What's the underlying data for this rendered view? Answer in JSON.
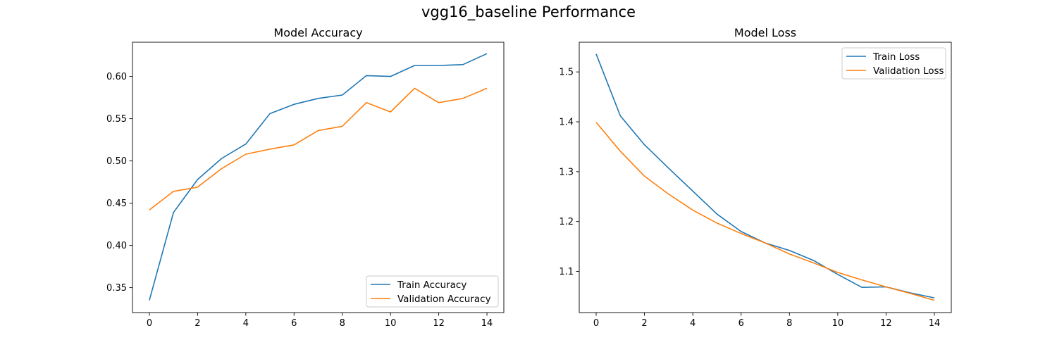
{
  "figure": {
    "suptitle": "vgg16_baseline Performance"
  },
  "colors": {
    "train": "#1f77b4",
    "validation": "#ff7f0e"
  },
  "chart_data": [
    {
      "type": "line",
      "title": "Model Accuracy",
      "xlabel": "",
      "ylabel": "",
      "x": [
        0,
        1,
        2,
        3,
        4,
        5,
        6,
        7,
        8,
        9,
        10,
        11,
        12,
        13,
        14
      ],
      "xlim": [
        -0.7,
        14.7
      ],
      "ylim": [
        0.3205,
        0.6405
      ],
      "xticks": [
        0,
        2,
        4,
        6,
        8,
        10,
        12,
        14
      ],
      "yticks": [
        0.35,
        0.4,
        0.45,
        0.5,
        0.55,
        0.6
      ],
      "ytick_labels": [
        "0.35",
        "0.40",
        "0.45",
        "0.50",
        "0.55",
        "0.60"
      ],
      "grid": false,
      "legend": "lower-right",
      "series": [
        {
          "name": "Train Accuracy",
          "color": "#1f77b4",
          "values": [
            0.335,
            0.439,
            0.478,
            0.503,
            0.52,
            0.556,
            0.567,
            0.574,
            0.578,
            0.601,
            0.6,
            0.613,
            0.613,
            0.614,
            0.627
          ]
        },
        {
          "name": "Validation Accuracy",
          "color": "#ff7f0e",
          "values": [
            0.442,
            0.464,
            0.469,
            0.491,
            0.508,
            0.514,
            0.519,
            0.536,
            0.541,
            0.569,
            0.558,
            0.586,
            0.569,
            0.574,
            0.586
          ]
        }
      ]
    },
    {
      "type": "line",
      "title": "Model Loss",
      "xlabel": "",
      "ylabel": "",
      "x": [
        0,
        1,
        2,
        3,
        4,
        5,
        6,
        7,
        8,
        9,
        10,
        11,
        12,
        13,
        14
      ],
      "xlim": [
        -0.7,
        14.7
      ],
      "ylim": [
        1.0175,
        1.5595
      ],
      "xticks": [
        0,
        2,
        4,
        6,
        8,
        10,
        12,
        14
      ],
      "yticks": [
        1.1,
        1.2,
        1.3,
        1.4,
        1.5
      ],
      "ytick_labels": [
        "1.1",
        "1.2",
        "1.3",
        "1.4",
        "1.5"
      ],
      "grid": false,
      "legend": "top-right",
      "series": [
        {
          "name": "Train Loss",
          "color": "#1f77b4",
          "values": [
            1.536,
            1.412,
            1.354,
            1.307,
            1.261,
            1.215,
            1.18,
            1.157,
            1.142,
            1.122,
            1.094,
            1.068,
            1.069,
            1.057,
            1.047
          ]
        },
        {
          "name": "Validation Loss",
          "color": "#ff7f0e",
          "values": [
            1.399,
            1.341,
            1.291,
            1.255,
            1.223,
            1.197,
            1.176,
            1.157,
            1.135,
            1.117,
            1.098,
            1.083,
            1.069,
            1.056,
            1.042
          ]
        }
      ]
    }
  ]
}
